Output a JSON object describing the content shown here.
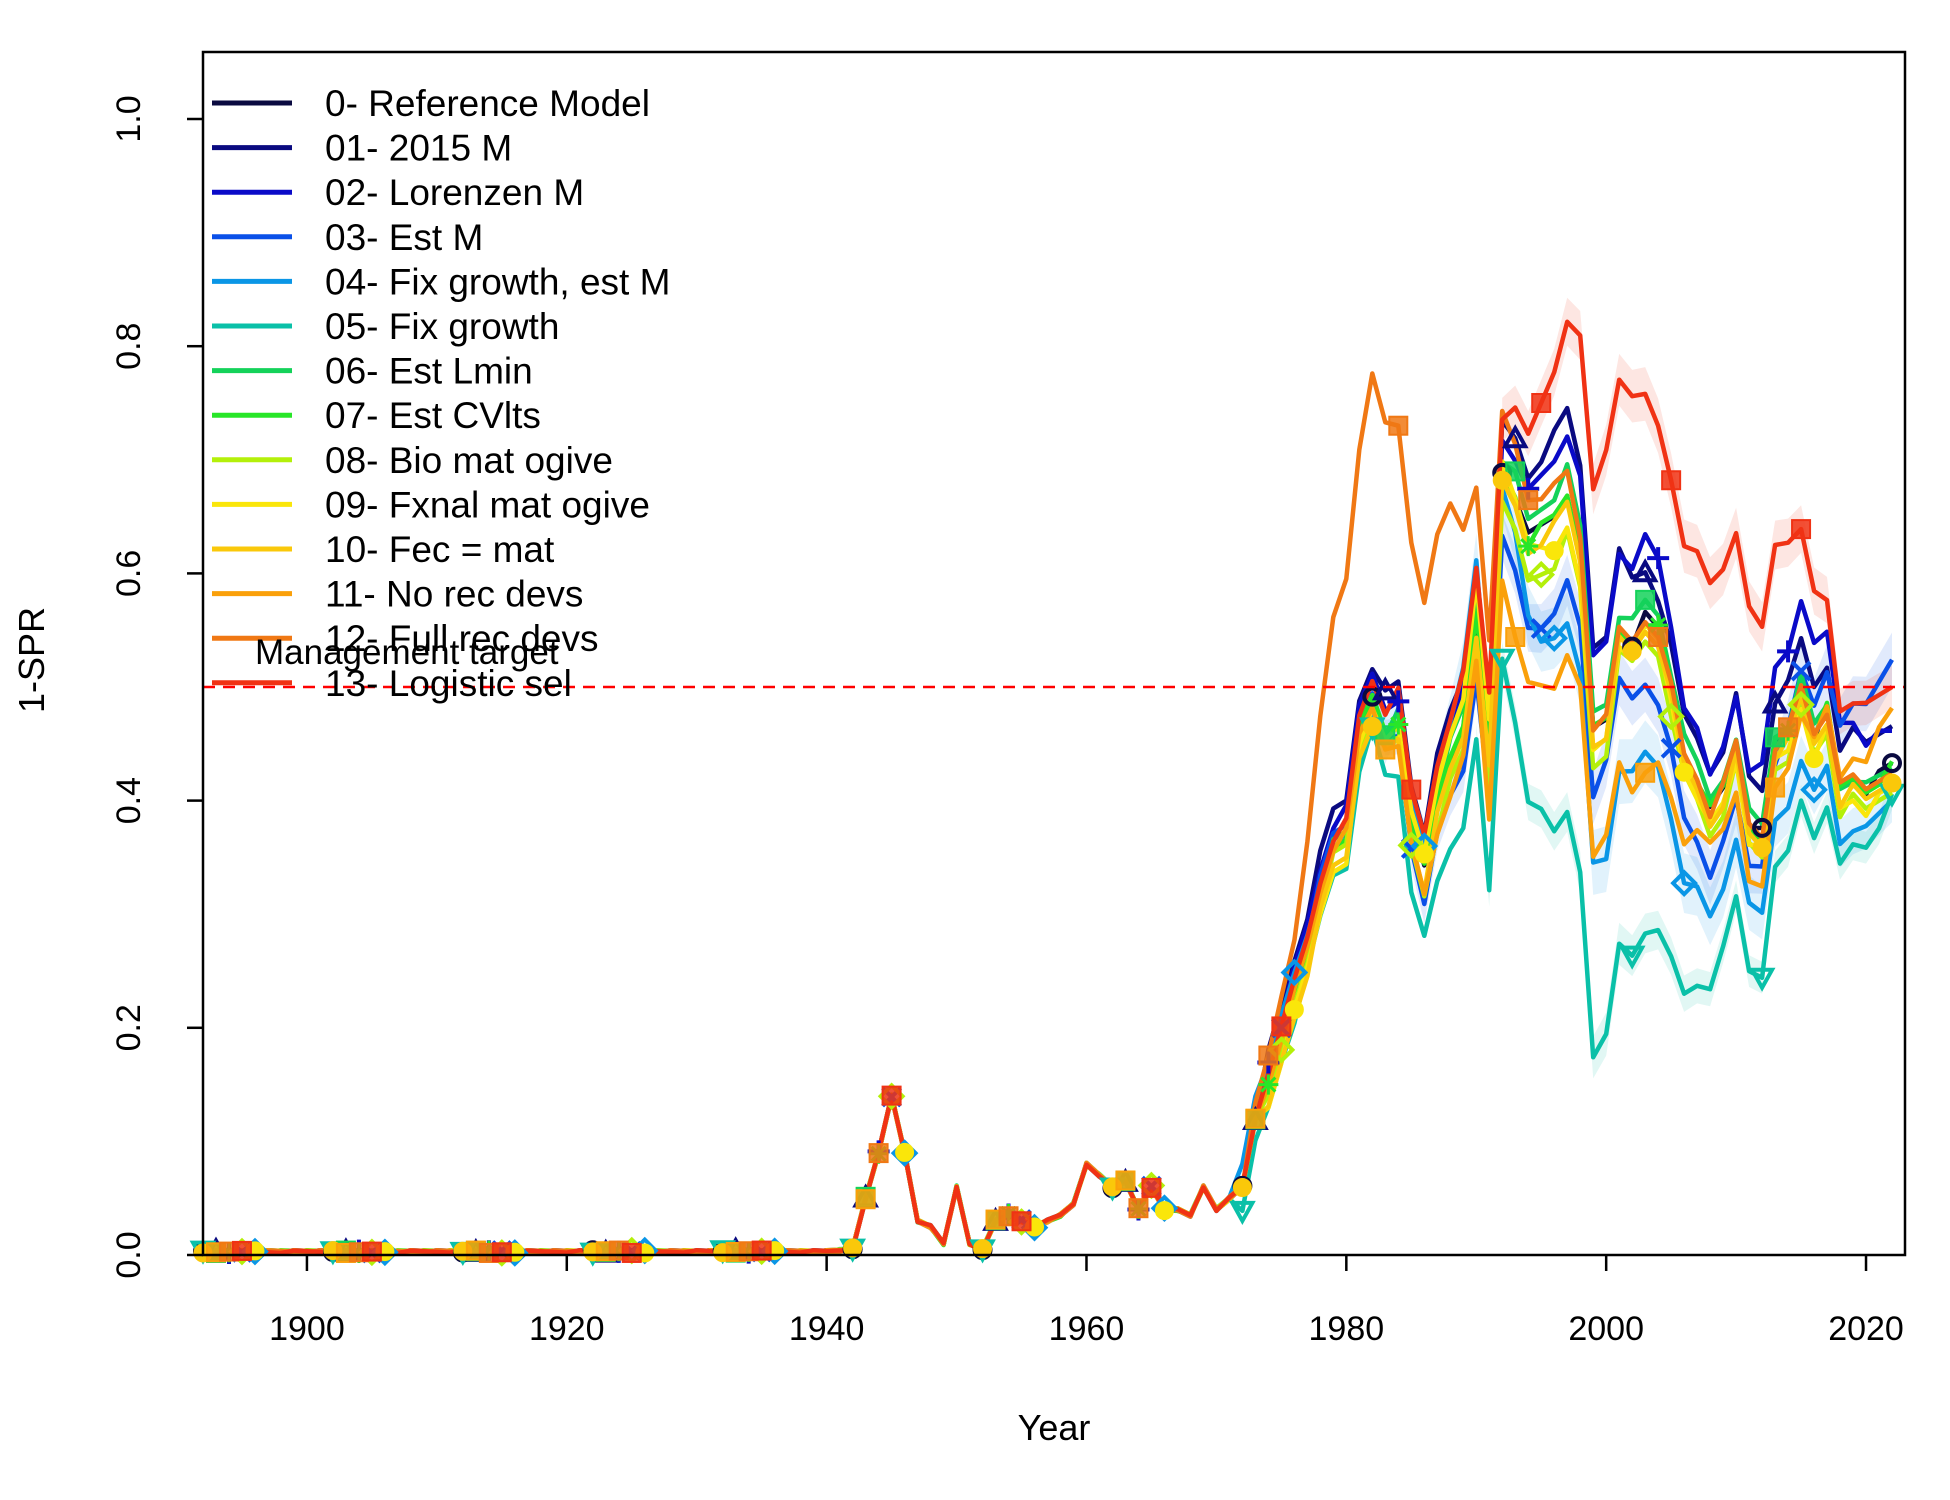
{
  "chart_data": {
    "type": "line",
    "xlabel": "Year",
    "ylabel": "1-SPR",
    "xlim": [
      1892,
      2023
    ],
    "ylim": [
      0,
      1.05
    ],
    "x_ticks": [
      1900,
      1920,
      1940,
      1960,
      1980,
      2000,
      2020
    ],
    "y_ticks": [
      0.0,
      0.2,
      0.4,
      0.6,
      0.8,
      1.0
    ],
    "x_tick_labels": [
      "1900",
      "1920",
      "1940",
      "1960",
      "1980",
      "2000",
      "2020"
    ],
    "y_tick_labels": [
      "0.0",
      "0.2",
      "0.4",
      "0.6",
      "0.8",
      "1.0"
    ],
    "legend_position": "top-left",
    "reference_line": {
      "label": "Management target",
      "y": 0.5,
      "color": "#ff0000",
      "style": "dashed"
    },
    "base_years": [
      1940,
      1941,
      1942,
      1943,
      1944,
      1945,
      1946,
      1947,
      1948,
      1949,
      1950,
      1951,
      1952,
      1953,
      1954,
      1955,
      1956,
      1957,
      1958,
      1959,
      1960,
      1961,
      1962,
      1963,
      1964,
      1965,
      1966,
      1967,
      1968,
      1969,
      1970,
      1971,
      1972,
      1973,
      1974,
      1975,
      1976,
      1977,
      1978,
      1979,
      1980,
      1981,
      1982,
      1983,
      1984,
      1985,
      1986,
      1987,
      1988,
      1989,
      1990,
      1991,
      1992,
      1993,
      1994,
      1995,
      1996,
      1997,
      1998,
      1999,
      2000,
      2001,
      2002,
      2003,
      2004,
      2005,
      2006,
      2007,
      2008,
      2009,
      2010,
      2011,
      2012,
      2013,
      2014,
      2015,
      2016,
      2017,
      2018,
      2019,
      2020,
      2021,
      2022
    ],
    "base_values": [
      0.003,
      0.004,
      0.005,
      0.05,
      0.09,
      0.14,
      0.09,
      0.03,
      0.025,
      0.01,
      0.06,
      0.01,
      0.005,
      0.03,
      0.035,
      0.03,
      0.025,
      0.03,
      0.035,
      0.045,
      0.08,
      0.07,
      0.06,
      0.065,
      0.04,
      0.06,
      0.04,
      0.04,
      0.035,
      0.06,
      0.04,
      0.05,
      0.06,
      0.12,
      0.15,
      0.19,
      0.23,
      0.27,
      0.32,
      0.36,
      0.37,
      0.46,
      0.49,
      0.46,
      0.47,
      0.38,
      0.34,
      0.4,
      0.44,
      0.47,
      0.56,
      0.45,
      0.69,
      0.67,
      0.63,
      0.64,
      0.65,
      0.67,
      0.62,
      0.46,
      0.47,
      0.55,
      0.54,
      0.56,
      0.55,
      0.5,
      0.44,
      0.42,
      0.39,
      0.41,
      0.45,
      0.38,
      0.37,
      0.45,
      0.46,
      0.5,
      0.46,
      0.48,
      0.41,
      0.42,
      0.41,
      0.42,
      0.43
    ],
    "series": [
      {
        "name": "0- Reference Model",
        "color": "#0a0a40",
        "marker": "o",
        "offsets": [
          [
            1980,
            0
          ],
          [
            2000,
            0
          ]
        ],
        "shade": []
      },
      {
        "name": "01- 2015 M",
        "color": "#0a0a80",
        "marker": "triangle",
        "offsets": [
          [
            1980,
            0.03
          ],
          [
            1992,
            0.04
          ],
          [
            1996,
            0.07
          ],
          [
            2000,
            0.08
          ],
          [
            2004,
            0.03
          ],
          [
            2010,
            0.04
          ],
          [
            2022,
            0.04
          ]
        ],
        "shade": []
      },
      {
        "name": "02- Lorenzen M",
        "color": "#0a0ac8",
        "marker": "plus",
        "offsets": [
          [
            1980,
            0.02
          ],
          [
            1992,
            0.03
          ],
          [
            1996,
            0.05
          ],
          [
            2000,
            0.07
          ],
          [
            2003,
            0.07
          ],
          [
            2008,
            0.03
          ],
          [
            2015,
            0.08
          ],
          [
            2022,
            0.03
          ]
        ],
        "shade": []
      },
      {
        "name": "03- Est M",
        "color": "#0a50e8",
        "marker": "x",
        "offsets": [
          [
            1980,
            0.01
          ],
          [
            1992,
            -0.06
          ],
          [
            1996,
            -0.09
          ],
          [
            2000,
            -0.04
          ],
          [
            2004,
            -0.06
          ],
          [
            2010,
            -0.05
          ],
          [
            2022,
            0.1
          ]
        ],
        "shade": [
          [
            1980,
            0.01
          ],
          [
            2000,
            0.02
          ],
          [
            2022,
            0.02
          ]
        ]
      },
      {
        "name": "04- Fix growth, est M",
        "color": "#0a96e6",
        "marker": "diamond",
        "offsets": [
          [
            1975,
            0.02
          ],
          [
            1982,
            -0.01
          ],
          [
            1990,
            0.05
          ],
          [
            1995,
            -0.1
          ],
          [
            2000,
            -0.12
          ],
          [
            2004,
            -0.12
          ],
          [
            2010,
            -0.08
          ],
          [
            2022,
            -0.03
          ]
        ],
        "shade": [
          [
            1980,
            0.015
          ],
          [
            2000,
            0.025
          ],
          [
            2022,
            0.015
          ]
        ]
      },
      {
        "name": "05- Fix growth",
        "color": "#0ac0a8",
        "marker": "triangle-down",
        "offsets": [
          [
            1975,
            -0.02
          ],
          [
            1982,
            -0.03
          ],
          [
            1990,
            -0.1
          ],
          [
            1993,
            -0.2
          ],
          [
            1996,
            -0.28
          ],
          [
            2000,
            -0.28
          ],
          [
            2004,
            -0.27
          ],
          [
            2008,
            -0.15
          ],
          [
            2015,
            -0.1
          ],
          [
            2022,
            -0.03
          ]
        ],
        "shade": [
          [
            1990,
            0.01
          ],
          [
            2000,
            0.015
          ],
          [
            2010,
            0.01
          ]
        ]
      },
      {
        "name": "06- Est Lmin",
        "color": "#14d25a",
        "marker": "square",
        "offsets": [
          [
            1980,
            0
          ],
          [
            1997,
            0.02
          ],
          [
            2022,
            0
          ]
        ],
        "shade": []
      },
      {
        "name": "07- Est CVlts",
        "color": "#28e628",
        "marker": "star",
        "offsets": [
          [
            1980,
            0
          ],
          [
            1998,
            0
          ],
          [
            2022,
            0
          ]
        ],
        "shade": []
      },
      {
        "name": "08- Bio mat ogive",
        "color": "#b4f00a",
        "marker": "diamond",
        "offsets": [
          [
            1980,
            -0.01
          ],
          [
            1996,
            -0.04
          ],
          [
            2002,
            -0.02
          ],
          [
            2022,
            -0.02
          ]
        ],
        "shade": []
      },
      {
        "name": "09- Fxnal mat ogive",
        "color": "#fae60a",
        "marker": "dot",
        "offsets": [
          [
            1980,
            -0.02
          ],
          [
            1990,
            0.03
          ],
          [
            1996,
            -0.03
          ],
          [
            2002,
            -0.01
          ],
          [
            2022,
            -0.02
          ]
        ],
        "shade": []
      },
      {
        "name": "10- Fec = mat",
        "color": "#fac80a",
        "marker": "dot",
        "offsets": [
          [
            1980,
            -0.02
          ],
          [
            1996,
            -0.01
          ],
          [
            2022,
            -0.01
          ]
        ],
        "shade": []
      },
      {
        "name": "11- No rec devs",
        "color": "#faa00a",
        "marker": "square",
        "offsets": [
          [
            1980,
            0
          ],
          [
            1990,
            -0.04
          ],
          [
            1993,
            -0.12
          ],
          [
            1996,
            -0.15
          ],
          [
            2000,
            -0.1
          ],
          [
            2003,
            -0.14
          ],
          [
            2008,
            -0.03
          ],
          [
            2012,
            -0.05
          ],
          [
            2022,
            0.05
          ]
        ],
        "shade": []
      },
      {
        "name": "12- Full rec devs",
        "color": "#f07814",
        "marker": "square",
        "offsets": [
          [
            1972,
            0
          ],
          [
            1976,
            0.05
          ],
          [
            1979,
            0.2
          ],
          [
            1982,
            0.28
          ],
          [
            1985,
            0.25
          ],
          [
            1988,
            0.22
          ],
          [
            1990,
            0.12
          ],
          [
            1992,
            0.05
          ],
          [
            2000,
            0
          ],
          [
            2022,
            0
          ]
        ],
        "shade": []
      },
      {
        "name": "13- Logistic sel",
        "color": "#f03214",
        "marker": "square",
        "offsets": [
          [
            1980,
            0.01
          ],
          [
            1992,
            0.05
          ],
          [
            1996,
            0.13
          ],
          [
            2000,
            0.24
          ],
          [
            2004,
            0.18
          ],
          [
            2008,
            0.2
          ],
          [
            2014,
            0.17
          ],
          [
            2018,
            0.07
          ],
          [
            2022,
            0.07
          ]
        ],
        "shade": [
          [
            1992,
            0.015
          ],
          [
            2004,
            0.02
          ],
          [
            2022,
            0.015
          ]
        ]
      }
    ]
  }
}
